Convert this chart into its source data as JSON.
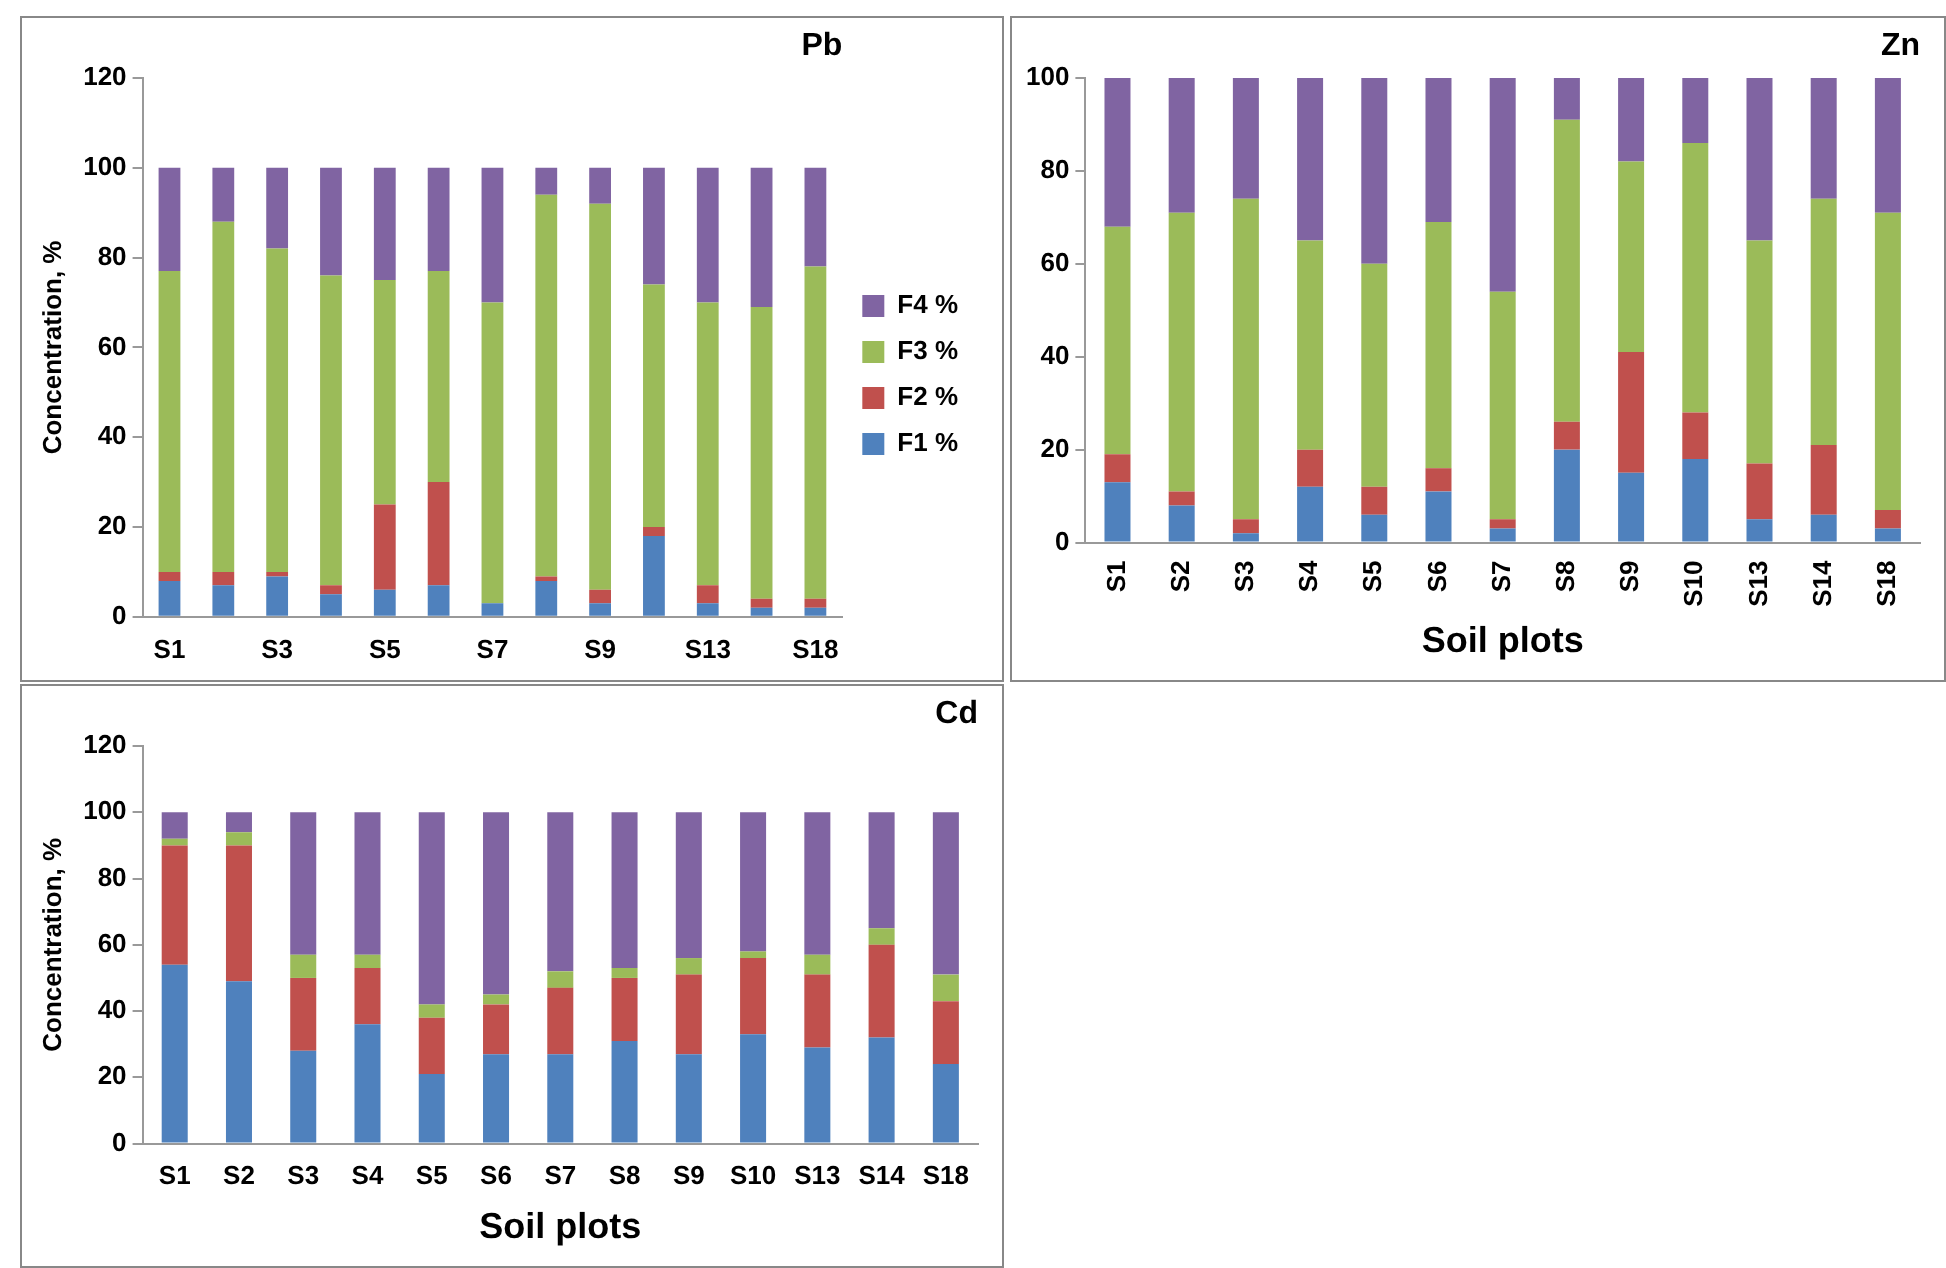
{
  "chart_data": [
    {
      "type": "bar",
      "title": "Pb",
      "ylabel": "Concentration, %",
      "stacked": true,
      "legend": "right",
      "grid": false,
      "categories": [
        "S1",
        null,
        "S3",
        null,
        "S5",
        null,
        "S7",
        null,
        "S9",
        null,
        "S13",
        null,
        "S18"
      ],
      "ylim": [
        0,
        120
      ],
      "yticks": [
        0,
        20,
        40,
        60,
        80,
        100,
        120
      ],
      "series": [
        {
          "name": "F1 %",
          "color": "#4f81bd",
          "values": [
            8,
            7,
            9,
            5,
            6,
            7,
            3,
            8,
            3,
            18,
            3,
            2,
            2
          ]
        },
        {
          "name": "F2 %",
          "color": "#c0504d",
          "values": [
            2,
            3,
            1,
            2,
            19,
            23,
            0,
            1,
            3,
            2,
            4,
            2,
            2
          ]
        },
        {
          "name": "F3 %",
          "color": "#9bbb59",
          "values": [
            67,
            78,
            72,
            69,
            50,
            47,
            67,
            85,
            86,
            54,
            63,
            65,
            74
          ]
        },
        {
          "name": "F4 %",
          "color": "#8064a2",
          "values": [
            23,
            12,
            18,
            24,
            25,
            23,
            30,
            6,
            8,
            26,
            30,
            31,
            22
          ]
        }
      ]
    },
    {
      "type": "bar",
      "title": "Zn",
      "xlabel": "Soil plots",
      "stacked": true,
      "grid": false,
      "categories": [
        "S1",
        "S2",
        "S3",
        "S4",
        "S5",
        "S6",
        "S7",
        "S8",
        "S9",
        "S10",
        "S13",
        "S14",
        "S18"
      ],
      "ylim": [
        0,
        100
      ],
      "yticks": [
        0,
        20,
        40,
        60,
        80,
        100
      ],
      "series": [
        {
          "color": "#4f81bd",
          "values": [
            13,
            8,
            2,
            12,
            6,
            11,
            3,
            20,
            15,
            18,
            5,
            6,
            3
          ]
        },
        {
          "color": "#c0504d",
          "values": [
            6,
            3,
            3,
            8,
            6,
            5,
            2,
            6,
            26,
            10,
            12,
            15,
            4
          ]
        },
        {
          "color": "#9bbb59",
          "values": [
            49,
            60,
            69,
            45,
            48,
            53,
            49,
            65,
            41,
            58,
            48,
            53,
            64
          ]
        },
        {
          "color": "#8064a2",
          "values": [
            32,
            29,
            26,
            35,
            40,
            31,
            46,
            9,
            18,
            14,
            35,
            26,
            29
          ]
        }
      ]
    },
    {
      "type": "bar",
      "title": "Cd",
      "xlabel": "Soil plots",
      "ylabel": "Concentration, %",
      "stacked": true,
      "grid": false,
      "categories": [
        "S1",
        "S2",
        "S3",
        "S4",
        "S5",
        "S6",
        "S7",
        "S8",
        "S9",
        "S10",
        "S13",
        "S14",
        "S18"
      ],
      "ylim": [
        0,
        120
      ],
      "yticks": [
        0,
        20,
        40,
        60,
        80,
        100,
        120
      ],
      "series": [
        {
          "color": "#4f81bd",
          "values": [
            54,
            49,
            28,
            36,
            21,
            27,
            27,
            31,
            27,
            33,
            29,
            32,
            24
          ]
        },
        {
          "color": "#c0504d",
          "values": [
            36,
            41,
            22,
            17,
            17,
            15,
            20,
            19,
            24,
            23,
            22,
            28,
            19
          ]
        },
        {
          "color": "#9bbb59",
          "values": [
            2,
            4,
            7,
            4,
            4,
            3,
            5,
            3,
            5,
            2,
            6,
            5,
            8
          ]
        },
        {
          "color": "#8064a2",
          "values": [
            8,
            6,
            43,
            43,
            58,
            55,
            48,
            47,
            44,
            42,
            43,
            35,
            49
          ]
        }
      ]
    }
  ]
}
